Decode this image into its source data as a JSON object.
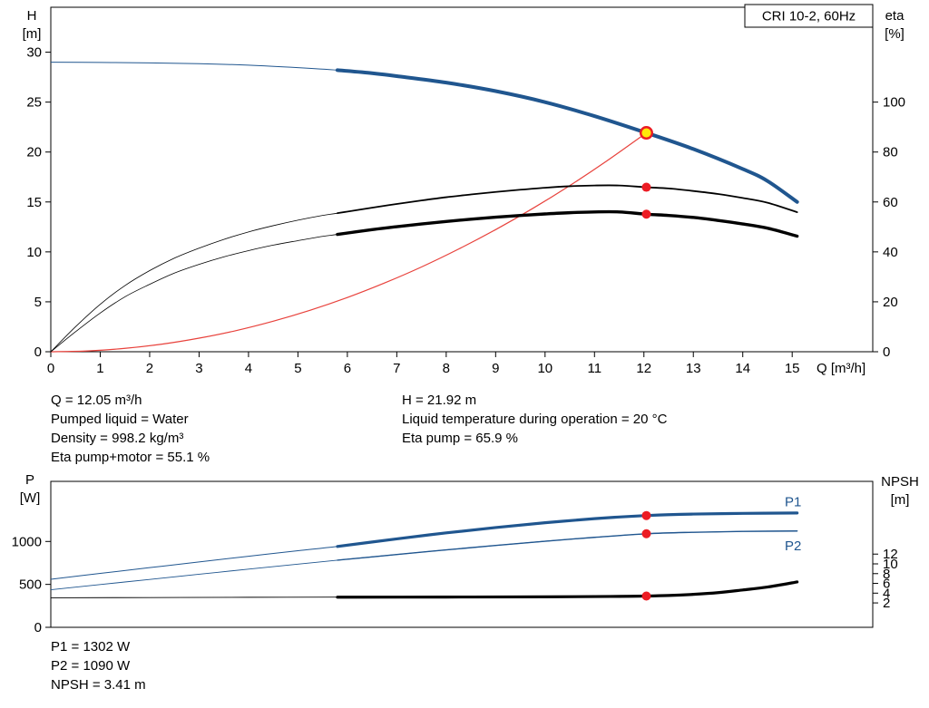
{
  "colors": {
    "curve_blue": "#20568f",
    "system_red": "#e8423c",
    "dot_red": "#ec1c24",
    "duty_yellow": "#ffe80a",
    "axis_black": "#000000"
  },
  "annotations": {
    "top_left": [
      "Q = 12.05 m³/h",
      "Pumped liquid = Water",
      "Density = 998.2 kg/m³",
      "Eta pump+motor = 55.1 %"
    ],
    "top_right": [
      "H = 21.92 m",
      "Liquid temperature during operation = 20 °C",
      "Eta pump = 65.9 %"
    ],
    "bottom": [
      "P1 = 1302 W",
      "P2 = 1090 W",
      "NPSH = 3.41 m"
    ]
  },
  "chart_data": [
    {
      "name": "performance",
      "type": "line",
      "title_box": "CRI 10-2, 60Hz",
      "x_axis": {
        "label": "Q [m³/h]",
        "min": 0,
        "max": 16.63,
        "ticks": [
          0,
          1,
          2,
          3,
          4,
          5,
          6,
          7,
          8,
          9,
          10,
          11,
          12,
          13,
          14,
          15
        ]
      },
      "y_left": {
        "label_lines": [
          "H",
          "[m]"
        ],
        "min": 0,
        "max": 34.5,
        "ticks": [
          0,
          5,
          10,
          15,
          20,
          25,
          30
        ]
      },
      "y_right": {
        "label_lines": [
          "eta",
          "[%]"
        ],
        "min": 0,
        "max": 138,
        "ticks": [
          0,
          20,
          40,
          60,
          80,
          100
        ]
      },
      "series": [
        {
          "name": "head-curve",
          "axis": "left",
          "color": "#20568f",
          "width": 4,
          "thin_width": 1,
          "thick_from": 5.8,
          "points": [
            [
              0,
              29
            ],
            [
              1,
              28.97
            ],
            [
              2,
              28.93
            ],
            [
              3,
              28.85
            ],
            [
              4,
              28.7
            ],
            [
              5,
              28.45
            ],
            [
              5.8,
              28.2
            ],
            [
              6.5,
              27.9
            ],
            [
              7,
              27.6
            ],
            [
              8,
              26.95
            ],
            [
              9,
              26.1
            ],
            [
              10,
              25
            ],
            [
              11,
              23.6
            ],
            [
              12.05,
              21.92
            ],
            [
              13,
              20.3
            ],
            [
              14,
              18.3
            ],
            [
              14.5,
              17.1
            ],
            [
              15.1,
              15
            ]
          ]
        },
        {
          "name": "system-curve",
          "axis": "left",
          "color": "#e8423c",
          "width": 1.2,
          "points": [
            [
              0,
              0
            ],
            [
              0.75,
              0.08
            ],
            [
              1.5,
              0.34
            ],
            [
              2.25,
              0.76
            ],
            [
              3,
              1.36
            ],
            [
              3.75,
              2.12
            ],
            [
              4.5,
              3.06
            ],
            [
              5.25,
              4.16
            ],
            [
              6,
              5.43
            ],
            [
              6.75,
              6.88
            ],
            [
              7.5,
              8.49
            ],
            [
              8.25,
              10.28
            ],
            [
              9,
              12.23
            ],
            [
              9.75,
              14.35
            ],
            [
              10.5,
              16.64
            ],
            [
              11.25,
              19.11
            ],
            [
              12.05,
              21.92
            ]
          ]
        },
        {
          "name": "eta-pump-curve",
          "axis": "right",
          "color": "#000000",
          "width": 1.8,
          "thin_width": 0.8,
          "thick_from": 5.8,
          "points": [
            [
              0,
              0
            ],
            [
              0.5,
              10
            ],
            [
              1,
              19
            ],
            [
              1.5,
              26.5
            ],
            [
              2,
              32.5
            ],
            [
              2.5,
              37.5
            ],
            [
              3,
              41.5
            ],
            [
              3.5,
              45
            ],
            [
              4,
              48
            ],
            [
              4.5,
              50.5
            ],
            [
              5,
              52.7
            ],
            [
              5.5,
              54.6
            ],
            [
              5.8,
              55.5
            ],
            [
              6.5,
              57.7
            ],
            [
              7,
              59.2
            ],
            [
              7.5,
              60.6
            ],
            [
              8,
              61.9
            ],
            [
              8.5,
              63
            ],
            [
              9,
              64
            ],
            [
              9.5,
              64.9
            ],
            [
              10,
              65.7
            ],
            [
              10.5,
              66.3
            ],
            [
              11,
              66.6
            ],
            [
              11.5,
              66.6
            ],
            [
              12.05,
              65.9
            ],
            [
              12.5,
              65.4
            ],
            [
              13,
              64.4
            ],
            [
              13.5,
              63.2
            ],
            [
              14,
              61.6
            ],
            [
              14.5,
              59.7
            ],
            [
              15.1,
              55.9
            ]
          ]
        },
        {
          "name": "eta-pump-motor-curve",
          "axis": "right",
          "color": "#000000",
          "width": 3.4,
          "thin_width": 0.8,
          "thick_from": 5.8,
          "points": [
            [
              0,
              0
            ],
            [
              0.5,
              8
            ],
            [
              1,
              15.5
            ],
            [
              1.5,
              22
            ],
            [
              2,
              27
            ],
            [
              2.5,
              31.5
            ],
            [
              3,
              35
            ],
            [
              3.5,
              38
            ],
            [
              4,
              40.5
            ],
            [
              4.5,
              42.7
            ],
            [
              5,
              44.5
            ],
            [
              5.5,
              46.2
            ],
            [
              5.8,
              47
            ],
            [
              6.5,
              48.9
            ],
            [
              7,
              50.1
            ],
            [
              7.5,
              51.2
            ],
            [
              8,
              52.2
            ],
            [
              8.5,
              53.1
            ],
            [
              9,
              53.9
            ],
            [
              9.5,
              54.6
            ],
            [
              10,
              55.2
            ],
            [
              10.5,
              55.7
            ],
            [
              11,
              56
            ],
            [
              11.5,
              56
            ],
            [
              12.05,
              55.1
            ],
            [
              12.5,
              54.6
            ],
            [
              13,
              53.8
            ],
            [
              13.5,
              52.6
            ],
            [
              14,
              51.2
            ],
            [
              14.5,
              49.5
            ],
            [
              15.1,
              46.3
            ]
          ]
        }
      ],
      "markers": [
        {
          "name": "duty-point",
          "axis": "left",
          "x": 12.05,
          "y": 21.92,
          "kind": "duty"
        },
        {
          "name": "eta-pump-dot",
          "axis": "right",
          "x": 12.05,
          "y": 65.9,
          "kind": "dot"
        },
        {
          "name": "eta-pump-motor-dot",
          "axis": "right",
          "x": 12.05,
          "y": 55.1,
          "kind": "dot"
        }
      ]
    },
    {
      "name": "power-npsh",
      "type": "line",
      "x_axis": {
        "label": "",
        "min": 0,
        "max": 16.63,
        "ticks": []
      },
      "y_left": {
        "label_lines": [
          "P",
          "[W]"
        ],
        "min": 0,
        "max": 1700,
        "ticks": [
          0,
          500,
          1000
        ]
      },
      "y_right": {
        "label_lines": [
          "NPSH",
          "[m]"
        ],
        "min": -3,
        "max": 26.9,
        "ticks": [
          2,
          4,
          6,
          8,
          10,
          12
        ]
      },
      "series": [
        {
          "name": "p1-curve",
          "axis": "left",
          "color": "#20568f",
          "width": 3.2,
          "thin_width": 1,
          "thick_from": 5.8,
          "label": {
            "text": "P1",
            "x": 14.85,
            "y": 1460
          },
          "points": [
            [
              0,
              560
            ],
            [
              1,
              628
            ],
            [
              2,
              695
            ],
            [
              3,
              762
            ],
            [
              4,
              828
            ],
            [
              5,
              892
            ],
            [
              5.8,
              942
            ],
            [
              7,
              1030
            ],
            [
              8,
              1100
            ],
            [
              9,
              1162
            ],
            [
              10,
              1218
            ],
            [
              11,
              1266
            ],
            [
              11.5,
              1285
            ],
            [
              12.05,
              1302
            ],
            [
              12.5,
              1312
            ],
            [
              13,
              1319
            ],
            [
              14,
              1327
            ],
            [
              15.1,
              1332
            ]
          ]
        },
        {
          "name": "p2-curve",
          "axis": "left",
          "color": "#20568f",
          "width": 1.4,
          "thin_width": 0.9,
          "thick_from": 5.8,
          "label": {
            "text": "P2",
            "x": 14.85,
            "y": 950
          },
          "points": [
            [
              0,
              438
            ],
            [
              1,
              498
            ],
            [
              2,
              558
            ],
            [
              3,
              618
            ],
            [
              4,
              678
            ],
            [
              5,
              736
            ],
            [
              5.8,
              782
            ],
            [
              7,
              848
            ],
            [
              8,
              902
            ],
            [
              9,
              954
            ],
            [
              10,
              1003
            ],
            [
              11,
              1048
            ],
            [
              12.05,
              1090
            ],
            [
              13,
              1107
            ],
            [
              14,
              1117
            ],
            [
              15.1,
              1122
            ]
          ]
        },
        {
          "name": "npsh-curve",
          "axis": "right",
          "color": "#000000",
          "width": 3.2,
          "thin_width": 0.9,
          "thick_from": 5.8,
          "points": [
            [
              0,
              3.05
            ],
            [
              2,
              3.1
            ],
            [
              4,
              3.15
            ],
            [
              5.8,
              3.18
            ],
            [
              8,
              3.2
            ],
            [
              10,
              3.25
            ],
            [
              11,
              3.3
            ],
            [
              11.5,
              3.34
            ],
            [
              12.05,
              3.41
            ],
            [
              12.5,
              3.52
            ],
            [
              13,
              3.75
            ],
            [
              13.5,
              4.1
            ],
            [
              14,
              4.65
            ],
            [
              14.5,
              5.25
            ],
            [
              15.1,
              6.3
            ]
          ]
        }
      ],
      "markers": [
        {
          "name": "p1-dot",
          "axis": "left",
          "x": 12.05,
          "y": 1302,
          "kind": "dot"
        },
        {
          "name": "p2-dot",
          "axis": "left",
          "x": 12.05,
          "y": 1090,
          "kind": "dot"
        },
        {
          "name": "npsh-dot",
          "axis": "right",
          "x": 12.05,
          "y": 3.41,
          "kind": "dot"
        }
      ]
    }
  ]
}
